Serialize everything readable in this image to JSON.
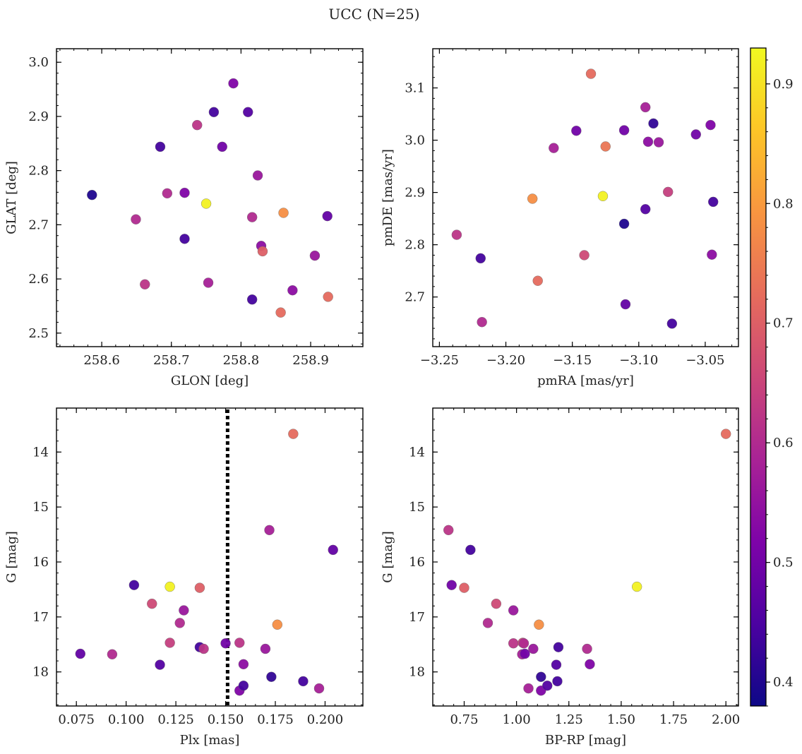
{
  "figure_title": "UCC (N=25)",
  "colorbar": {
    "ticks": [
      "0.4",
      "0.5",
      "0.6",
      "0.7",
      "0.8",
      "0.9"
    ],
    "range": [
      0.38,
      0.93
    ]
  },
  "chart_data": [
    {
      "type": "scatter",
      "panel": "top-left",
      "xlabel": "GLON [deg]",
      "ylabel": "GLAT [deg]",
      "xlim": [
        258.535,
        258.975
      ],
      "ylim": [
        2.475,
        3.025
      ],
      "y_inverted": false,
      "xticks": [
        "258.6",
        "258.7",
        "258.8",
        "258.9"
      ],
      "yticks": [
        "2.5",
        "2.6",
        "2.7",
        "2.8",
        "2.9",
        "3.0"
      ],
      "points": [
        {
          "x": 258.586,
          "y": 2.755,
          "c": 0.4
        },
        {
          "x": 258.649,
          "y": 2.71,
          "c": 0.6
        },
        {
          "x": 258.662,
          "y": 2.59,
          "c": 0.62
        },
        {
          "x": 258.684,
          "y": 2.844,
          "c": 0.44
        },
        {
          "x": 258.694,
          "y": 2.758,
          "c": 0.6
        },
        {
          "x": 258.719,
          "y": 2.674,
          "c": 0.44
        },
        {
          "x": 258.719,
          "y": 2.759,
          "c": 0.52
        },
        {
          "x": 258.737,
          "y": 2.884,
          "c": 0.62
        },
        {
          "x": 258.75,
          "y": 2.739,
          "c": 0.92
        },
        {
          "x": 258.753,
          "y": 2.593,
          "c": 0.58
        },
        {
          "x": 258.761,
          "y": 2.908,
          "c": 0.44
        },
        {
          "x": 258.773,
          "y": 2.844,
          "c": 0.5
        },
        {
          "x": 258.789,
          "y": 2.961,
          "c": 0.52
        },
        {
          "x": 258.81,
          "y": 2.908,
          "c": 0.46
        },
        {
          "x": 258.816,
          "y": 2.714,
          "c": 0.6
        },
        {
          "x": 258.816,
          "y": 2.562,
          "c": 0.44
        },
        {
          "x": 258.824,
          "y": 2.791,
          "c": 0.56
        },
        {
          "x": 258.829,
          "y": 2.661,
          "c": 0.54
        },
        {
          "x": 258.831,
          "y": 2.651,
          "c": 0.7
        },
        {
          "x": 258.857,
          "y": 2.538,
          "c": 0.72
        },
        {
          "x": 258.861,
          "y": 2.722,
          "c": 0.78
        },
        {
          "x": 258.874,
          "y": 2.579,
          "c": 0.54
        },
        {
          "x": 258.906,
          "y": 2.643,
          "c": 0.56
        },
        {
          "x": 258.924,
          "y": 2.716,
          "c": 0.48
        },
        {
          "x": 258.925,
          "y": 2.567,
          "c": 0.72
        }
      ]
    },
    {
      "type": "scatter",
      "panel": "top-right",
      "xlabel": "pmRA [mas/yr]",
      "ylabel": "pmDE [mas/yr]",
      "xlim": [
        -3.255,
        -3.025
      ],
      "ylim": [
        2.605,
        3.175
      ],
      "y_inverted": false,
      "xticks": [
        "−3.25",
        "−3.20",
        "−3.15",
        "−3.10",
        "−3.05"
      ],
      "yticks": [
        "2.7",
        "2.8",
        "2.9",
        "3.0",
        "3.1"
      ],
      "points": [
        {
          "x": -3.237,
          "y": 2.819,
          "c": 0.62
        },
        {
          "x": -3.219,
          "y": 2.774,
          "c": 0.44
        },
        {
          "x": -3.218,
          "y": 2.652,
          "c": 0.6
        },
        {
          "x": -3.18,
          "y": 2.888,
          "c": 0.78
        },
        {
          "x": -3.176,
          "y": 2.731,
          "c": 0.72
        },
        {
          "x": -3.164,
          "y": 2.985,
          "c": 0.58
        },
        {
          "x": -3.147,
          "y": 3.018,
          "c": 0.5
        },
        {
          "x": -3.141,
          "y": 2.78,
          "c": 0.66
        },
        {
          "x": -3.136,
          "y": 3.127,
          "c": 0.72
        },
        {
          "x": -3.127,
          "y": 2.893,
          "c": 0.92
        },
        {
          "x": -3.125,
          "y": 2.988,
          "c": 0.74
        },
        {
          "x": -3.111,
          "y": 3.019,
          "c": 0.5
        },
        {
          "x": -3.111,
          "y": 2.84,
          "c": 0.4
        },
        {
          "x": -3.11,
          "y": 2.686,
          "c": 0.48
        },
        {
          "x": -3.095,
          "y": 3.063,
          "c": 0.58
        },
        {
          "x": -3.095,
          "y": 2.868,
          "c": 0.46
        },
        {
          "x": -3.093,
          "y": 2.997,
          "c": 0.54
        },
        {
          "x": -3.089,
          "y": 3.032,
          "c": 0.42
        },
        {
          "x": -3.085,
          "y": 2.996,
          "c": 0.56
        },
        {
          "x": -3.078,
          "y": 2.901,
          "c": 0.64
        },
        {
          "x": -3.075,
          "y": 2.649,
          "c": 0.44
        },
        {
          "x": -3.057,
          "y": 3.011,
          "c": 0.5
        },
        {
          "x": -3.046,
          "y": 3.029,
          "c": 0.52
        },
        {
          "x": -3.045,
          "y": 2.781,
          "c": 0.54
        },
        {
          "x": -3.044,
          "y": 2.882,
          "c": 0.44
        }
      ]
    },
    {
      "type": "scatter",
      "panel": "bottom-left",
      "xlabel": "Plx [mas]",
      "ylabel": "G [mag]",
      "xlim": [
        0.065,
        0.219
      ],
      "ylim": [
        13.2,
        18.62
      ],
      "y_inverted": true,
      "xticks": [
        "0.075",
        "0.100",
        "0.125",
        "0.150",
        "0.175",
        "0.200"
      ],
      "yticks": [
        "14",
        "15",
        "16",
        "17",
        "18"
      ],
      "vline": {
        "x": 0.151,
        "style": "dotted"
      },
      "points": [
        {
          "x": 0.077,
          "y": 17.67,
          "c": 0.48
        },
        {
          "x": 0.093,
          "y": 17.68,
          "c": 0.6
        },
        {
          "x": 0.104,
          "y": 16.42,
          "c": 0.44
        },
        {
          "x": 0.113,
          "y": 16.76,
          "c": 0.66
        },
        {
          "x": 0.117,
          "y": 17.87,
          "c": 0.46
        },
        {
          "x": 0.122,
          "y": 16.45,
          "c": 0.92
        },
        {
          "x": 0.122,
          "y": 17.47,
          "c": 0.64
        },
        {
          "x": 0.127,
          "y": 17.11,
          "c": 0.6
        },
        {
          "x": 0.129,
          "y": 16.88,
          "c": 0.56
        },
        {
          "x": 0.137,
          "y": 17.55,
          "c": 0.44
        },
        {
          "x": 0.137,
          "y": 16.47,
          "c": 0.7
        },
        {
          "x": 0.139,
          "y": 17.58,
          "c": 0.62
        },
        {
          "x": 0.15,
          "y": 17.48,
          "c": 0.5
        },
        {
          "x": 0.157,
          "y": 18.34,
          "c": 0.52
        },
        {
          "x": 0.157,
          "y": 17.47,
          "c": 0.62
        },
        {
          "x": 0.159,
          "y": 17.86,
          "c": 0.54
        },
        {
          "x": 0.159,
          "y": 18.25,
          "c": 0.44
        },
        {
          "x": 0.17,
          "y": 17.58,
          "c": 0.56
        },
        {
          "x": 0.172,
          "y": 15.42,
          "c": 0.58
        },
        {
          "x": 0.173,
          "y": 18.09,
          "c": 0.42
        },
        {
          "x": 0.176,
          "y": 17.14,
          "c": 0.78
        },
        {
          "x": 0.184,
          "y": 13.67,
          "c": 0.72
        },
        {
          "x": 0.189,
          "y": 18.17,
          "c": 0.44
        },
        {
          "x": 0.197,
          "y": 18.3,
          "c": 0.58
        },
        {
          "x": 0.204,
          "y": 15.78,
          "c": 0.48
        }
      ]
    },
    {
      "type": "scatter",
      "panel": "bottom-right",
      "xlabel": "BP-RP [mag]",
      "ylabel": "G [mag]",
      "xlim": [
        0.6,
        2.06
      ],
      "ylim": [
        13.2,
        18.62
      ],
      "y_inverted": true,
      "xticks": [
        "0.75",
        "1.00",
        "1.25",
        "1.50",
        "1.75",
        "2.00"
      ],
      "yticks": [
        "14",
        "15",
        "16",
        "17",
        "18"
      ],
      "points": [
        {
          "x": 0.675,
          "y": 15.42,
          "c": 0.62
        },
        {
          "x": 0.69,
          "y": 16.42,
          "c": 0.5
        },
        {
          "x": 0.75,
          "y": 16.47,
          "c": 0.7
        },
        {
          "x": 0.78,
          "y": 15.78,
          "c": 0.44
        },
        {
          "x": 0.863,
          "y": 17.11,
          "c": 0.6
        },
        {
          "x": 0.903,
          "y": 16.76,
          "c": 0.66
        },
        {
          "x": 0.985,
          "y": 17.48,
          "c": 0.62
        },
        {
          "x": 0.985,
          "y": 16.88,
          "c": 0.56
        },
        {
          "x": 1.027,
          "y": 17.68,
          "c": 0.58
        },
        {
          "x": 1.03,
          "y": 17.47,
          "c": 0.66
        },
        {
          "x": 1.035,
          "y": 17.48,
          "c": 0.6
        },
        {
          "x": 1.04,
          "y": 17.67,
          "c": 0.5
        },
        {
          "x": 1.057,
          "y": 18.3,
          "c": 0.58
        },
        {
          "x": 1.08,
          "y": 17.58,
          "c": 0.56
        },
        {
          "x": 1.107,
          "y": 17.14,
          "c": 0.78
        },
        {
          "x": 1.117,
          "y": 18.09,
          "c": 0.42
        },
        {
          "x": 1.117,
          "y": 18.34,
          "c": 0.52
        },
        {
          "x": 1.147,
          "y": 18.25,
          "c": 0.46
        },
        {
          "x": 1.19,
          "y": 17.87,
          "c": 0.46
        },
        {
          "x": 1.195,
          "y": 18.17,
          "c": 0.44
        },
        {
          "x": 1.2,
          "y": 17.55,
          "c": 0.44
        },
        {
          "x": 1.337,
          "y": 17.58,
          "c": 0.6
        },
        {
          "x": 1.35,
          "y": 17.86,
          "c": 0.52
        },
        {
          "x": 1.575,
          "y": 16.45,
          "c": 0.92
        },
        {
          "x": 2.0,
          "y": 13.67,
          "c": 0.72
        }
      ]
    }
  ]
}
